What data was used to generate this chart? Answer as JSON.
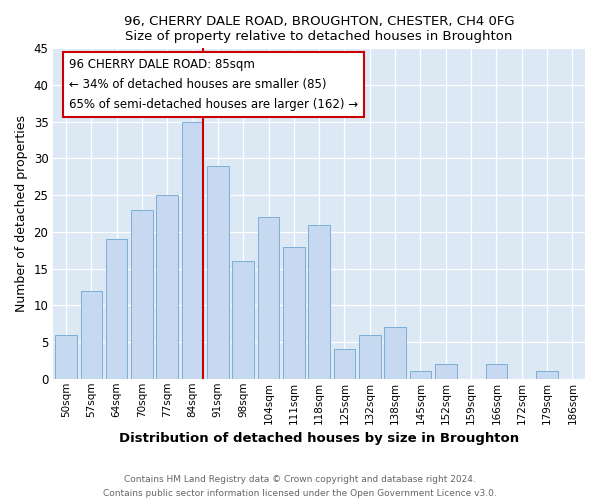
{
  "title1": "96, CHERRY DALE ROAD, BROUGHTON, CHESTER, CH4 0FG",
  "title2": "Size of property relative to detached houses in Broughton",
  "xlabel": "Distribution of detached houses by size in Broughton",
  "ylabel": "Number of detached properties",
  "bar_labels": [
    "50sqm",
    "57sqm",
    "64sqm",
    "70sqm",
    "77sqm",
    "84sqm",
    "91sqm",
    "98sqm",
    "104sqm",
    "111sqm",
    "118sqm",
    "125sqm",
    "132sqm",
    "138sqm",
    "145sqm",
    "152sqm",
    "159sqm",
    "166sqm",
    "172sqm",
    "179sqm",
    "186sqm"
  ],
  "bar_values": [
    6,
    12,
    19,
    23,
    25,
    35,
    29,
    16,
    22,
    18,
    21,
    4,
    6,
    7,
    1,
    2,
    0,
    2,
    0,
    1,
    0
  ],
  "bar_color": "#c6d9f0",
  "bar_edge_color": "#7bafd4",
  "highlight_line_color": "#cc0000",
  "highlight_bar_index": 5,
  "annotation_line0": "96 CHERRY DALE ROAD: 85sqm",
  "annotation_line1": "← 34% of detached houses are smaller (85)",
  "annotation_line2": "65% of semi-detached houses are larger (162) →",
  "annotation_box_color": "#ffffff",
  "annotation_box_edge": "#cc0000",
  "ylim": [
    0,
    45
  ],
  "yticks": [
    0,
    5,
    10,
    15,
    20,
    25,
    30,
    35,
    40,
    45
  ],
  "footer_line1": "Contains HM Land Registry data © Crown copyright and database right 2024.",
  "footer_line2": "Contains public sector information licensed under the Open Government Licence v3.0.",
  "plot_bg_color": "#dce9f5",
  "grid_color": "#ffffff"
}
